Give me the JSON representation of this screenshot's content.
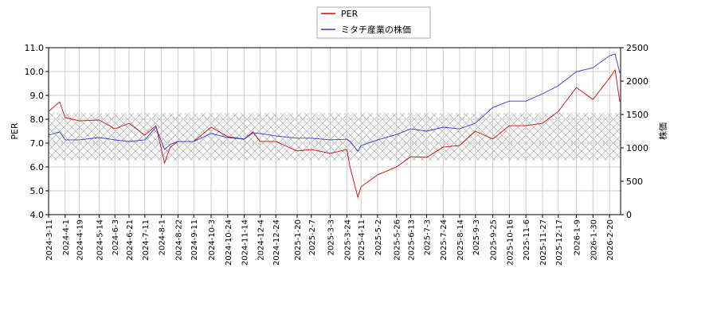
{
  "chart_data": {
    "type": "line",
    "x": [
      "2024-3-11",
      "2024-3-25",
      "2024-4-1",
      "2024-4-19",
      "2024-5-14",
      "2024-6-3",
      "2024-6-21",
      "2024-7-11",
      "2024-7-25",
      "2024-8-5",
      "2024-8-12",
      "2024-8-22",
      "2024-9-11",
      "2024-10-3",
      "2024-10-24",
      "2024-11-14",
      "2024-11-25",
      "2024-12-4",
      "2024-12-24",
      "2025-1-20",
      "2025-2-7",
      "2025-3-3",
      "2025-3-24",
      "2025-3-28",
      "2025-4-7",
      "2025-4-11",
      "2025-5-2",
      "2025-5-26",
      "2025-6-13",
      "2025-7-3",
      "2025-7-24",
      "2025-8-14",
      "2025-9-3",
      "2025-9-25",
      "2025-10-16",
      "2025-11-6",
      "2025-11-27",
      "2025-12-17",
      "2026-1-9",
      "2026-1-30",
      "2026-2-20",
      "2026-2-27",
      "2026-3-5"
    ],
    "series": [
      {
        "name": "PER",
        "color": "#dd0000",
        "values": [
          8.33,
          8.73,
          8.07,
          7.93,
          7.97,
          7.6,
          7.83,
          7.33,
          7.73,
          6.17,
          6.83,
          7.07,
          7.07,
          7.67,
          7.27,
          7.17,
          7.47,
          7.07,
          7.07,
          6.67,
          6.73,
          6.57,
          6.73,
          6.0,
          4.73,
          5.17,
          5.67,
          6.0,
          6.43,
          6.4,
          6.83,
          6.9,
          7.5,
          7.17,
          7.73,
          7.73,
          7.83,
          8.33,
          9.33,
          8.83,
          9.73,
          10.07,
          8.73
        ]
      },
      {
        "name": "ミタチ産業の株価",
        "color": "#3333dd",
        "axis": "y2",
        "values": [
          1190,
          1240,
          1120,
          1120,
          1155,
          1120,
          1095,
          1120,
          1310,
          975,
          1050,
          1095,
          1095,
          1215,
          1155,
          1130,
          1225,
          1215,
          1180,
          1145,
          1145,
          1120,
          1130,
          1100,
          950,
          1035,
          1120,
          1200,
          1285,
          1250,
          1310,
          1285,
          1370,
          1605,
          1700,
          1700,
          1810,
          1930,
          2140,
          2200,
          2380,
          2405,
          2120
        ]
      }
    ],
    "ylabel": "PER",
    "y2label": "株価",
    "xlim": [
      "2024-3-11",
      "2026-3-6"
    ],
    "xticks": [
      "2024-3-11",
      "2024-4-1",
      "2024-4-19",
      "2024-5-14",
      "2024-6-3",
      "2024-6-21",
      "2024-7-11",
      "2024-8-1",
      "2024-8-22",
      "2024-9-11",
      "2024-10-3",
      "2024-10-24",
      "2024-11-14",
      "2024-12-4",
      "2024-12-24",
      "2025-1-20",
      "2025-2-7",
      "2025-3-3",
      "2025-3-24",
      "2025-4-11",
      "2025-5-2",
      "2025-5-26",
      "2025-6-13",
      "2025-7-3",
      "2025-7-24",
      "2025-8-14",
      "2025-9-3",
      "2025-9-25",
      "2025-10-16",
      "2025-11-6",
      "2025-11-27",
      "2025-12-17",
      "2026-1-9",
      "2026-1-30",
      "2026-2-20"
    ],
    "ylim": [
      4,
      11
    ],
    "yticks": [
      {
        "value": 4,
        "label": "4.0"
      },
      {
        "value": 5,
        "label": "5.0"
      },
      {
        "value": 6,
        "label": "6.0"
      },
      {
        "value": 7,
        "label": "7.0"
      },
      {
        "value": 8,
        "label": "8.0"
      },
      {
        "value": 9,
        "label": "9.0"
      },
      {
        "value": 10,
        "label": "10.0"
      },
      {
        "value": 11,
        "label": "11.0"
      }
    ],
    "y2lim": [
      0,
      2500
    ],
    "y2ticks": [
      0,
      500,
      1000,
      1500,
      2000,
      2500
    ],
    "shaded_range": [
      6.27,
      8.27
    ],
    "grid": true,
    "legend": "top"
  }
}
